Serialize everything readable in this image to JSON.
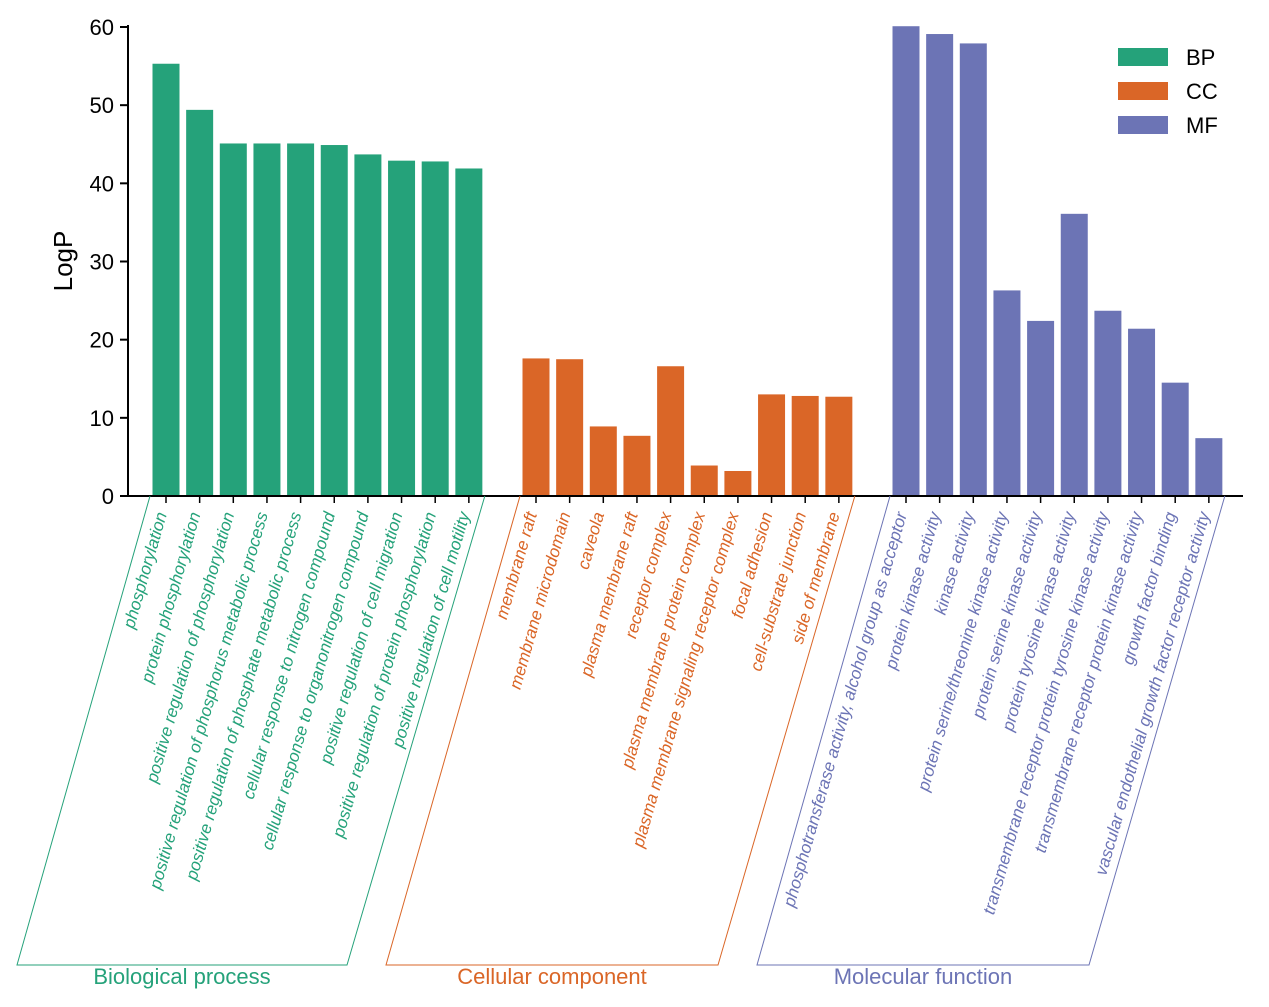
{
  "chart_data": {
    "type": "bar",
    "ylabel": "LogP",
    "ylim": [
      0,
      60
    ],
    "yticks": [
      0,
      10,
      20,
      30,
      40,
      50,
      60
    ],
    "grid": false,
    "legend_position": "top-right",
    "series": [
      {
        "name": "BP",
        "group_label": "Biological process",
        "color": "#25A27A",
        "categories": [
          "phosphorylation",
          "protein phosphorylation",
          "positive regulation of phosphorylation",
          "positive regulation of phosphorus metabolic process",
          "positive regulation of phosphate metabolic process",
          "cellular response to nitrogen compound",
          "cellular response to organonitrogen compound",
          "positive regulation of cell migration",
          "positive regulation of protein phosphorylation",
          "positive regulation of cell motility"
        ],
        "values": [
          55.3,
          49.4,
          45.1,
          45.1,
          45.1,
          44.9,
          43.7,
          42.9,
          42.8,
          41.9
        ]
      },
      {
        "name": "CC",
        "group_label": "Cellular component",
        "color": "#DA6627",
        "categories": [
          "membrane raft",
          "membrane microdomain",
          "caveola",
          "plasma membrane raft",
          "receptor complex",
          "plasma membrane protein complex",
          "plasma membrane signaling receptor complex",
          "focal adhesion",
          "cell-substrate junction",
          "side of membrane"
        ],
        "values": [
          17.6,
          17.5,
          8.9,
          7.7,
          16.6,
          3.9,
          3.2,
          13.0,
          12.8,
          12.7
        ]
      },
      {
        "name": "MF",
        "group_label": "Molecular function",
        "color": "#6C74B5",
        "categories": [
          "phosphotransferase activity, alcohol group as acceptor",
          "protein kinase activity",
          "kinase activity",
          "protein serine/threonine kinase activity",
          "protein serine kinase activity",
          "protein tyrosine kinase activity",
          "transmembrane receptor protein tyrosine kinase activity",
          "transmembrane receptor protein kinase activity",
          "growth factor binding",
          "vascular endothelial growth factor receptor activity"
        ],
        "values": [
          60.1,
          59.1,
          57.9,
          26.3,
          22.4,
          36.1,
          23.7,
          21.4,
          14.5,
          7.4
        ]
      }
    ]
  }
}
